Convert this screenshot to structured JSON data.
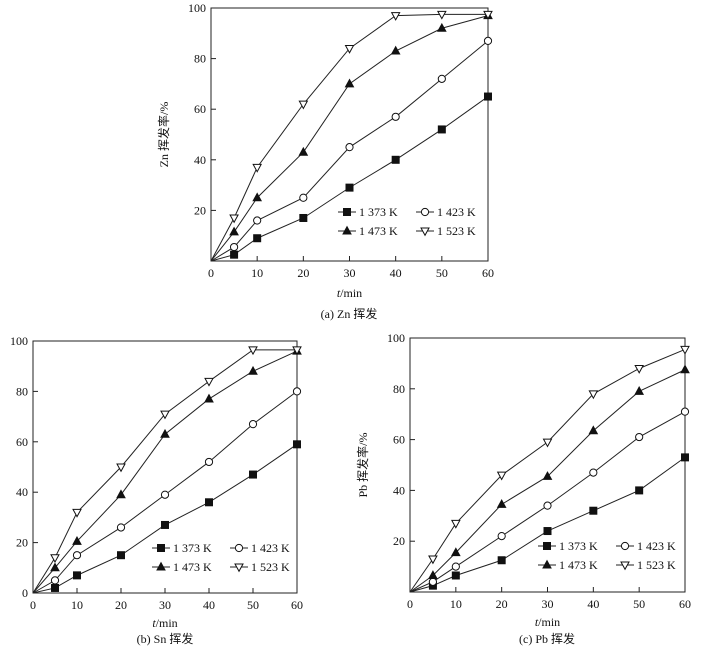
{
  "chart_data": [
    {
      "type": "line",
      "xlabel_var": "t",
      "xlabel_unit": "/min",
      "ylabel": "Zn 挥发率/%",
      "caption": "(a) Zn 挥发",
      "xlim": [
        0,
        60
      ],
      "ylim": [
        0,
        100
      ],
      "xticks": [
        0,
        10,
        20,
        30,
        40,
        50,
        60
      ],
      "yticks": [
        20,
        40,
        60,
        80,
        100
      ],
      "legend_position": "bottom-right",
      "x": [
        0,
        5,
        10,
        20,
        30,
        40,
        50,
        60
      ],
      "series": [
        {
          "name": "1 373 K",
          "marker": "square-filled",
          "values": [
            0,
            2.5,
            9,
            17,
            29,
            40,
            52,
            65
          ]
        },
        {
          "name": "1 423 K",
          "marker": "circle-open",
          "values": [
            0,
            5.5,
            16,
            25,
            45,
            57,
            72,
            87
          ]
        },
        {
          "name": "1 473 K",
          "marker": "triangle-up-filled",
          "values": [
            0,
            11.5,
            25,
            43,
            70,
            83,
            92,
            97
          ]
        },
        {
          "name": "1 523 K",
          "marker": "triangle-down-open",
          "values": [
            0,
            17,
            37,
            62,
            84,
            97,
            97.5,
            97.5
          ]
        }
      ]
    },
    {
      "type": "line",
      "xlabel_var": "t",
      "xlabel_unit": "/min",
      "ylabel": "",
      "caption": "(b) Sn 挥发",
      "xlim": [
        0,
        60
      ],
      "ylim": [
        0,
        100
      ],
      "xticks": [
        0,
        10,
        20,
        30,
        40,
        50,
        60
      ],
      "yticks": [
        0,
        20,
        40,
        60,
        80,
        100
      ],
      "legend_position": "bottom-right",
      "x": [
        0,
        5,
        10,
        20,
        30,
        40,
        50,
        60
      ],
      "series": [
        {
          "name": "1 373 K",
          "marker": "square-filled",
          "values": [
            0,
            2,
            7,
            15,
            27,
            36,
            47,
            59
          ]
        },
        {
          "name": "1 423 K",
          "marker": "circle-open",
          "values": [
            0,
            5,
            15,
            26,
            39,
            52,
            67,
            80
          ]
        },
        {
          "name": "1 473 K",
          "marker": "triangle-up-filled",
          "values": [
            0,
            10,
            20.5,
            39,
            63,
            77,
            88,
            96
          ]
        },
        {
          "name": "1 523 K",
          "marker": "triangle-down-open",
          "values": [
            0,
            14,
            32,
            50,
            71,
            84,
            96.5,
            96.5
          ]
        }
      ]
    },
    {
      "type": "line",
      "xlabel_var": "t",
      "xlabel_unit": "/min",
      "ylabel": "Pb 挥发率/%",
      "caption": "(c) Pb 挥发",
      "xlim": [
        0,
        60
      ],
      "ylim": [
        0,
        100
      ],
      "xticks": [
        0,
        10,
        20,
        30,
        40,
        50,
        60
      ],
      "yticks": [
        20,
        40,
        60,
        80,
        100
      ],
      "legend_position": "bottom-right",
      "x": [
        0,
        5,
        10,
        20,
        30,
        40,
        50,
        60
      ],
      "series": [
        {
          "name": "1 373 K",
          "marker": "square-filled",
          "values": [
            0,
            2.5,
            6.5,
            12.5,
            24,
            32,
            40,
            53
          ]
        },
        {
          "name": "1 423 K",
          "marker": "circle-open",
          "values": [
            0,
            4,
            10,
            22,
            34,
            47,
            61,
            71
          ]
        },
        {
          "name": "1 473 K",
          "marker": "triangle-up-filled",
          "values": [
            0,
            6.5,
            15.5,
            34.5,
            45.5,
            63.5,
            79,
            87.5
          ]
        },
        {
          "name": "1 523 K",
          "marker": "triangle-down-open",
          "values": [
            0,
            13,
            27,
            46,
            59,
            78,
            88,
            95.5
          ]
        }
      ]
    }
  ]
}
